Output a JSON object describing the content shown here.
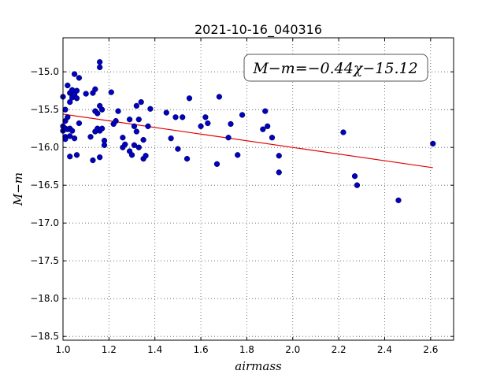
{
  "chart_data": {
    "type": "scatter",
    "title": "2021-10-16_040316",
    "xlabel": "airmass",
    "ylabel": "M−m",
    "xlim": [
      1.0,
      2.7
    ],
    "ylim": [
      -18.55,
      -14.55
    ],
    "y_inverted": true,
    "grid": true,
    "x_ticks": [
      1.0,
      1.2,
      1.4,
      1.6,
      1.8,
      2.0,
      2.2,
      2.4,
      2.6
    ],
    "x_tick_labels": [
      "1.0",
      "1.2",
      "1.4",
      "1.6",
      "1.8",
      "2.0",
      "2.2",
      "2.4",
      "2.6"
    ],
    "y_ticks": [
      -15.0,
      -15.5,
      -16.0,
      -16.5,
      -17.0,
      -17.5,
      -18.0,
      -18.5
    ],
    "y_tick_labels": [
      "−15.0",
      "−15.5",
      "−16.0",
      "−16.5",
      "−17.0",
      "−17.5",
      "−18.0",
      "−18.5"
    ],
    "annotation": "M−m=−0.44χ−15.12",
    "annotation_placement": "top-right",
    "fit": {
      "slope": -0.44,
      "intercept": -15.12,
      "x_range": [
        1.0,
        2.61
      ],
      "color": "#e00000"
    },
    "point_color": "#0000c0",
    "points": [
      [
        1.0,
        -15.33
      ],
      [
        1.0,
        -15.72
      ],
      [
        1.0,
        -15.78
      ],
      [
        1.01,
        -15.5
      ],
      [
        1.01,
        -15.65
      ],
      [
        1.01,
        -15.75
      ],
      [
        1.01,
        -15.86
      ],
      [
        1.01,
        -15.89
      ],
      [
        1.02,
        -15.18
      ],
      [
        1.02,
        -15.6
      ],
      [
        1.02,
        -15.76
      ],
      [
        1.03,
        -15.28
      ],
      [
        1.03,
        -15.4
      ],
      [
        1.03,
        -15.75
      ],
      [
        1.03,
        -15.85
      ],
      [
        1.03,
        -16.12
      ],
      [
        1.04,
        -15.24
      ],
      [
        1.04,
        -15.34
      ],
      [
        1.04,
        -15.78
      ],
      [
        1.05,
        -15.03
      ],
      [
        1.05,
        -15.3
      ],
      [
        1.05,
        -15.88
      ],
      [
        1.06,
        -15.25
      ],
      [
        1.06,
        -15.35
      ],
      [
        1.06,
        -16.1
      ],
      [
        1.07,
        -15.08
      ],
      [
        1.07,
        -15.68
      ],
      [
        1.1,
        -15.29
      ],
      [
        1.12,
        -15.86
      ],
      [
        1.13,
        -15.28
      ],
      [
        1.13,
        -16.17
      ],
      [
        1.14,
        -15.23
      ],
      [
        1.14,
        -15.52
      ],
      [
        1.14,
        -15.79
      ],
      [
        1.15,
        -15.55
      ],
      [
        1.15,
        -15.75
      ],
      [
        1.16,
        -15.78
      ],
      [
        1.16,
        -16.13
      ],
      [
        1.16,
        -14.87
      ],
      [
        1.16,
        -14.94
      ],
      [
        1.16,
        -15.45
      ],
      [
        1.17,
        -15.75
      ],
      [
        1.17,
        -15.5
      ],
      [
        1.18,
        -15.91
      ],
      [
        1.18,
        -15.97
      ],
      [
        1.21,
        -15.27
      ],
      [
        1.22,
        -15.69
      ],
      [
        1.23,
        -15.65
      ],
      [
        1.24,
        -15.52
      ],
      [
        1.26,
        -15.87
      ],
      [
        1.26,
        -16.0
      ],
      [
        1.27,
        -15.96
      ],
      [
        1.29,
        -15.63
      ],
      [
        1.29,
        -16.05
      ],
      [
        1.3,
        -16.1
      ],
      [
        1.31,
        -15.72
      ],
      [
        1.31,
        -15.97
      ],
      [
        1.32,
        -15.79
      ],
      [
        1.32,
        -15.45
      ],
      [
        1.33,
        -15.63
      ],
      [
        1.33,
        -16.0
      ],
      [
        1.34,
        -15.4
      ],
      [
        1.35,
        -16.15
      ],
      [
        1.35,
        -15.9
      ],
      [
        1.36,
        -16.11
      ],
      [
        1.37,
        -15.72
      ],
      [
        1.38,
        -15.49
      ],
      [
        1.45,
        -15.54
      ],
      [
        1.47,
        -15.88
      ],
      [
        1.49,
        -15.6
      ],
      [
        1.5,
        -16.02
      ],
      [
        1.52,
        -15.6
      ],
      [
        1.54,
        -16.15
      ],
      [
        1.55,
        -15.35
      ],
      [
        1.6,
        -15.72
      ],
      [
        1.62,
        -15.6
      ],
      [
        1.63,
        -15.68
      ],
      [
        1.67,
        -16.22
      ],
      [
        1.68,
        -15.33
      ],
      [
        1.72,
        -15.87
      ],
      [
        1.73,
        -15.69
      ],
      [
        1.76,
        -16.1
      ],
      [
        1.78,
        -15.57
      ],
      [
        1.87,
        -15.76
      ],
      [
        1.88,
        -15.52
      ],
      [
        1.89,
        -15.72
      ],
      [
        1.91,
        -15.87
      ],
      [
        1.94,
        -16.11
      ],
      [
        1.94,
        -16.33
      ],
      [
        2.22,
        -15.8
      ],
      [
        2.27,
        -16.38
      ],
      [
        2.28,
        -16.5
      ],
      [
        2.46,
        -16.7
      ],
      [
        2.61,
        -15.95
      ]
    ]
  }
}
